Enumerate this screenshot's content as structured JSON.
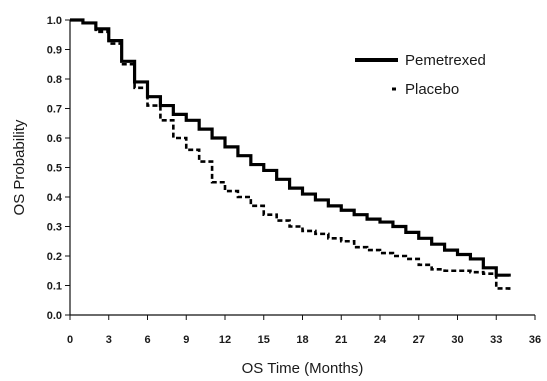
{
  "chart_data": {
    "type": "line",
    "title": "",
    "xlabel": "OS Time (Months)",
    "ylabel": "OS Probability",
    "xlim": [
      0,
      36
    ],
    "ylim": [
      0,
      1.0
    ],
    "x_ticks": [
      "0",
      "3",
      "6",
      "9",
      "12",
      "15",
      "18",
      "21",
      "24",
      "27",
      "30",
      "33",
      "36"
    ],
    "y_ticks": [
      "0.0",
      "0.1",
      "0.2",
      "0.3",
      "0.4",
      "0.5",
      "0.6",
      "0.7",
      "0.8",
      "0.9",
      "1.0"
    ],
    "grid": false,
    "legend_position": "top-right",
    "series": [
      {
        "name": "Pemetrexed",
        "style": "solid-thick",
        "color": "#000000",
        "points": [
          [
            0,
            1.0
          ],
          [
            1,
            0.99
          ],
          [
            2,
            0.97
          ],
          [
            3,
            0.93
          ],
          [
            4,
            0.86
          ],
          [
            5,
            0.79
          ],
          [
            6,
            0.74
          ],
          [
            7,
            0.71
          ],
          [
            8,
            0.68
          ],
          [
            9,
            0.66
          ],
          [
            10,
            0.63
          ],
          [
            11,
            0.6
          ],
          [
            12,
            0.57
          ],
          [
            13,
            0.54
          ],
          [
            14,
            0.51
          ],
          [
            15,
            0.49
          ],
          [
            16,
            0.46
          ],
          [
            17,
            0.43
          ],
          [
            18,
            0.41
          ],
          [
            19,
            0.39
          ],
          [
            20,
            0.37
          ],
          [
            21,
            0.355
          ],
          [
            22,
            0.34
          ],
          [
            23,
            0.325
          ],
          [
            24,
            0.315
          ],
          [
            25,
            0.3
          ],
          [
            26,
            0.28
          ],
          [
            27,
            0.26
          ],
          [
            28,
            0.24
          ],
          [
            29,
            0.22
          ],
          [
            30,
            0.205
          ],
          [
            31,
            0.19
          ],
          [
            32,
            0.16
          ],
          [
            33,
            0.135
          ],
          [
            34,
            0.13
          ]
        ]
      },
      {
        "name": "Placebo",
        "style": "dashed",
        "color": "#000000",
        "points": [
          [
            0,
            1.0
          ],
          [
            1,
            0.99
          ],
          [
            2,
            0.96
          ],
          [
            3,
            0.92
          ],
          [
            4,
            0.85
          ],
          [
            5,
            0.77
          ],
          [
            6,
            0.71
          ],
          [
            7,
            0.66
          ],
          [
            8,
            0.6
          ],
          [
            9,
            0.56
          ],
          [
            10,
            0.52
          ],
          [
            11,
            0.45
          ],
          [
            12,
            0.42
          ],
          [
            13,
            0.4
          ],
          [
            14,
            0.37
          ],
          [
            15,
            0.34
          ],
          [
            16,
            0.32
          ],
          [
            17,
            0.3
          ],
          [
            18,
            0.285
          ],
          [
            19,
            0.275
          ],
          [
            20,
            0.26
          ],
          [
            21,
            0.25
          ],
          [
            22,
            0.23
          ],
          [
            23,
            0.22
          ],
          [
            24,
            0.21
          ],
          [
            25,
            0.2
          ],
          [
            26,
            0.19
          ],
          [
            27,
            0.17
          ],
          [
            28,
            0.155
          ],
          [
            29,
            0.15
          ],
          [
            30,
            0.15
          ],
          [
            31,
            0.145
          ],
          [
            32,
            0.14
          ],
          [
            33,
            0.09
          ],
          [
            34,
            0.08
          ]
        ]
      }
    ]
  }
}
